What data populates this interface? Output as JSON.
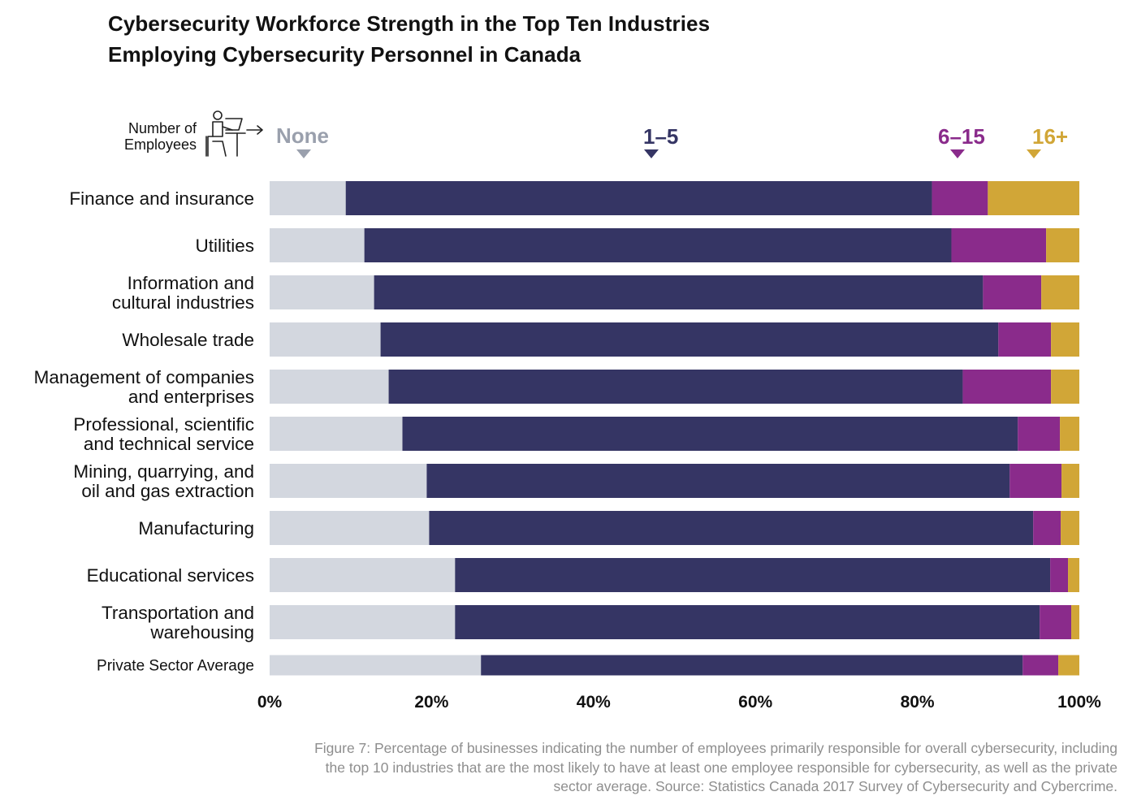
{
  "title_lines": [
    "Cybersecurity Workforce Strength in the Top Ten Industries",
    "Employing Cybersecurity Personnel in Canada"
  ],
  "legend": {
    "label_lines": [
      "Number of",
      "Employees"
    ],
    "icon": "person-at-desk-icon"
  },
  "colors": {
    "none": "#d3d7df",
    "one_to_five": "#353564",
    "six_to_fifteen": "#8a2b8b",
    "sixteen_plus": "#d1a637",
    "none_label": "#9aa0ad",
    "axis_text": "#111111",
    "caption": "#8e8e8e"
  },
  "chart_data": {
    "type": "bar",
    "orientation": "horizontal",
    "stacked": true,
    "title": "Cybersecurity Workforce Strength in the Top Ten Industries Employing Cybersecurity Personnel in Canada",
    "xlabel": "",
    "ylabel": "",
    "xlim": [
      0,
      100
    ],
    "x_ticks": [
      "0%",
      "20%",
      "40%",
      "60%",
      "80%",
      "100%"
    ],
    "legend_position": "top",
    "categories": [
      [
        "Finance and insurance"
      ],
      [
        "Utilities"
      ],
      [
        "Information and",
        "cultural industries"
      ],
      [
        "Wholesale trade"
      ],
      [
        "Management of companies",
        "and enterprises"
      ],
      [
        "Professional, scientific",
        "and technical service"
      ],
      [
        "Mining, quarrying, and",
        "oil and gas extraction"
      ],
      [
        "Manufacturing"
      ],
      [
        "Educational services"
      ],
      [
        "Transportation and",
        "warehousing"
      ],
      [
        "Private Sector Average"
      ]
    ],
    "series": [
      {
        "name": "None",
        "color_key": "none",
        "marker_at": 4.2,
        "values": [
          9.4,
          11.7,
          12.9,
          13.7,
          14.7,
          16.4,
          19.4,
          19.7,
          22.9,
          22.9,
          26.1
        ]
      },
      {
        "name": "1–5",
        "color_key": "one_to_five",
        "marker_at": 47.1,
        "values": [
          72.4,
          72.5,
          75.2,
          76.3,
          70.9,
          76.0,
          72.0,
          74.6,
          73.5,
          72.2,
          66.9
        ]
      },
      {
        "name": "6–15",
        "color_key": "six_to_fifteen",
        "marker_at": 85.0,
        "values": [
          6.9,
          11.7,
          7.2,
          6.5,
          10.9,
          5.2,
          6.4,
          3.4,
          2.2,
          3.9,
          4.4
        ]
      },
      {
        "name": "16+",
        "color_key": "sixteen_plus",
        "marker_at": 94.4,
        "values": [
          11.3,
          4.1,
          4.7,
          3.5,
          3.5,
          2.4,
          2.2,
          2.3,
          1.4,
          1.0,
          2.6
        ]
      }
    ]
  },
  "caption_lines": [
    "Figure 7: Percentage of businesses indicating the number of employees primarily responsible for overall cybersecurity, including",
    "the top 10 industries that are the most likely to have at least one employee responsible for cybersecurity, as well as the private",
    "sector average. Source: Statistics Canada 2017 Survey of Cybersecurity and Cybercrime."
  ]
}
